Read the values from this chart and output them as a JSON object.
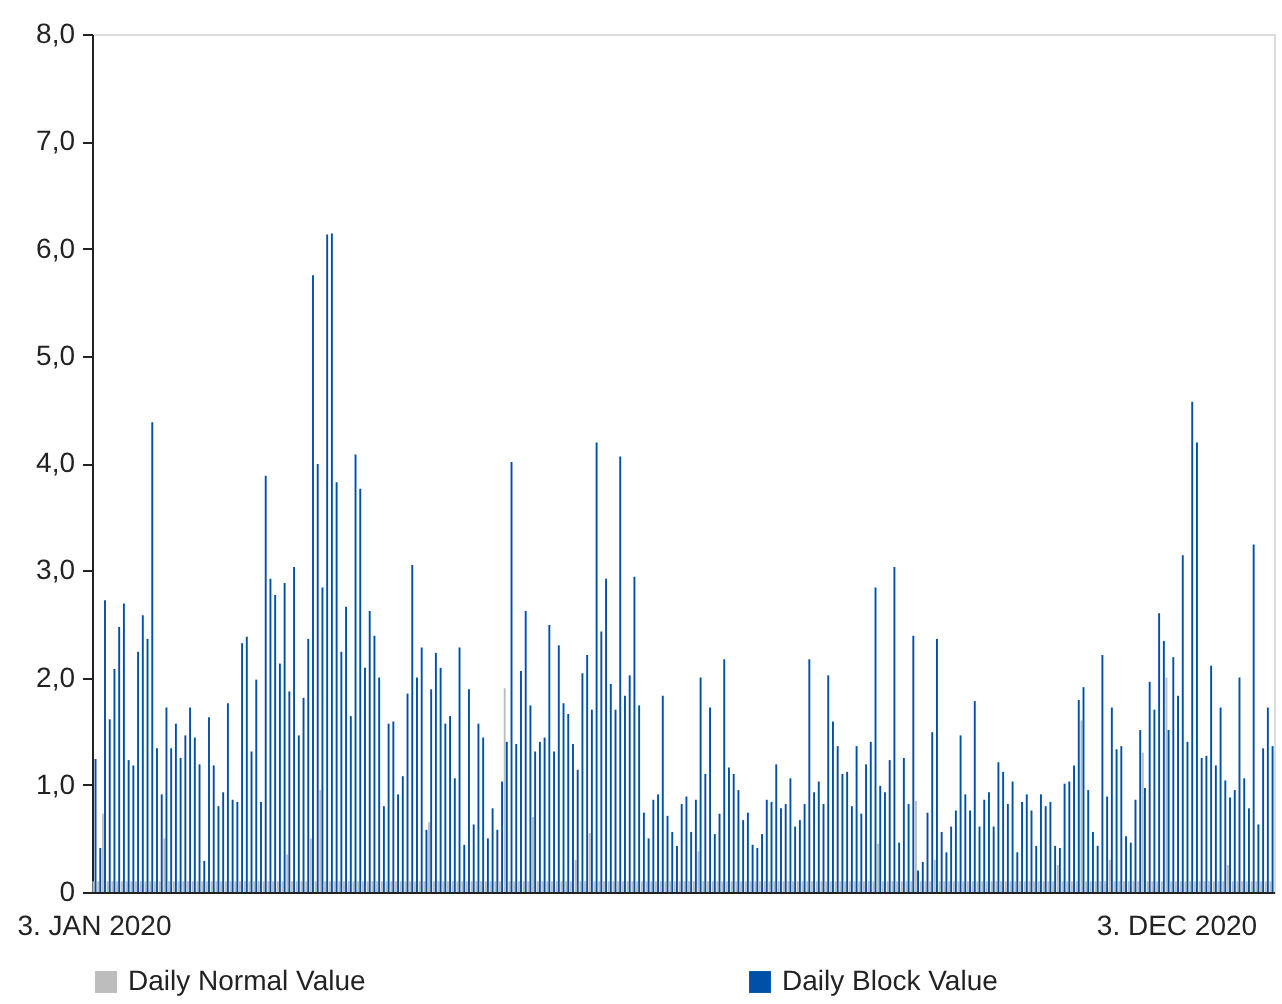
{
  "chart_data": {
    "type": "bar",
    "categories": [
      "3. JAN 2020",
      null,
      null,
      null,
      null,
      null,
      null,
      null,
      null,
      null,
      null,
      null,
      null,
      null,
      null,
      null,
      null,
      null,
      null,
      null,
      null,
      null,
      null,
      null,
      null,
      null,
      null,
      null,
      null,
      null,
      null,
      null,
      null,
      null,
      null,
      null,
      null,
      null,
      null,
      null,
      null,
      null,
      null,
      null,
      null,
      null,
      null,
      null,
      null,
      null,
      null,
      null,
      null,
      null,
      null,
      null,
      null,
      null,
      null,
      null,
      null,
      null,
      null,
      null,
      null,
      null,
      null,
      null,
      null,
      null,
      null,
      null,
      null,
      null,
      null,
      null,
      null,
      null,
      null,
      null,
      null,
      null,
      null,
      null,
      null,
      null,
      null,
      null,
      null,
      null,
      null,
      null,
      null,
      null,
      null,
      null,
      null,
      null,
      null,
      null,
      null,
      null,
      null,
      null,
      null,
      null,
      null,
      null,
      null,
      null,
      null,
      null,
      null,
      null,
      null,
      null,
      null,
      null,
      null,
      null,
      null,
      null,
      null,
      null,
      null,
      null,
      null,
      null,
      null,
      null,
      null,
      null,
      null,
      null,
      null,
      null,
      null,
      null,
      null,
      null,
      null,
      null,
      null,
      null,
      null,
      null,
      null,
      null,
      null,
      null,
      null,
      null,
      null,
      null,
      null,
      null,
      null,
      null,
      null,
      null,
      null,
      null,
      null,
      null,
      null,
      null,
      null,
      null,
      null,
      null,
      null,
      null,
      null,
      null,
      null,
      null,
      null,
      null,
      null,
      null,
      null,
      null,
      null,
      null,
      null,
      null,
      null,
      null,
      null,
      null,
      null,
      null,
      null,
      null,
      null,
      null,
      null,
      null,
      null,
      null,
      null,
      null,
      null,
      null,
      null,
      null,
      null,
      null,
      null,
      null,
      null,
      null,
      null,
      null,
      null,
      null,
      null,
      null,
      null,
      null,
      null,
      null,
      null,
      null,
      null,
      null,
      null,
      null,
      null,
      "3. DEC 2020",
      null,
      null,
      null,
      null,
      null,
      null,
      null,
      null,
      null,
      null,
      null,
      null,
      null,
      null,
      null,
      null,
      null,
      null,
      null,
      null
    ],
    "series": [
      {
        "name": "Daily Normal Value",
        "color": "#bdbdbd",
        "values": [
          0.1,
          0.1,
          0.73,
          0.1,
          0.1,
          0.1,
          0.1,
          0.1,
          0.1,
          0.1,
          0.1,
          0.1,
          0.1,
          0.1,
          0.1,
          0.5,
          0.1,
          0.1,
          0.1,
          0.1,
          0.1,
          0.1,
          0.1,
          0.1,
          0.1,
          0.1,
          0.1,
          0.1,
          0.1,
          0.1,
          0.1,
          0.1,
          0.1,
          0.1,
          0.1,
          0.1,
          0.1,
          0.1,
          0.1,
          0.1,
          0.1,
          0.35,
          0.1,
          0.1,
          0.1,
          0.1,
          0.5,
          0.1,
          0.95,
          0.1,
          0.1,
          0.1,
          0.1,
          0.1,
          0.1,
          0.1,
          0.1,
          0.1,
          0.1,
          0.1,
          0.1,
          0.1,
          0.1,
          0.1,
          0.1,
          0.1,
          0.1,
          0.1,
          0.1,
          0.1,
          0.1,
          0.65,
          0.1,
          0.1,
          0.1,
          0.1,
          0.1,
          0.1,
          0.1,
          0.1,
          0.1,
          0.1,
          0.1,
          0.1,
          0.1,
          0.1,
          0.1,
          1.9,
          0.1,
          0.1,
          0.1,
          0.1,
          0.1,
          0.7,
          0.1,
          0.1,
          0.1,
          0.1,
          0.1,
          0.1,
          0.1,
          0.1,
          0.3,
          0.1,
          0.1,
          0.55,
          0.1,
          0.1,
          0.1,
          0.1,
          0.1,
          0.1,
          0.1,
          0.1,
          0.1,
          0.1,
          0.1,
          0.1,
          0.1,
          0.1,
          0.1,
          0.1,
          0.1,
          0.1,
          0.1,
          0.1,
          0.1,
          0.1,
          0.38,
          0.1,
          0.1,
          0.1,
          0.1,
          0.1,
          0.1,
          0.1,
          0.1,
          0.1,
          0.1,
          0.1,
          0.1,
          0.1,
          0.1,
          0.1,
          0.1,
          0.1,
          0.1,
          0.1,
          0.1,
          0.1,
          0.1,
          0.1,
          0.1,
          0.1,
          0.1,
          0.1,
          0.1,
          0.1,
          0.1,
          0.1,
          0.1,
          0.1,
          0.1,
          0.1,
          0.1,
          0.1,
          0.45,
          0.1,
          0.1,
          0.1,
          0.1,
          0.1,
          0.1,
          0.1,
          0.85,
          0.1,
          0.1,
          0.1,
          0.3,
          0.1,
          0.1,
          0.1,
          0.1,
          0.1,
          0.1,
          0.1,
          0.1,
          0.1,
          0.1,
          0.1,
          0.1,
          0.1,
          0.1,
          0.1,
          0.1,
          0.1,
          0.1,
          0.1,
          0.1,
          0.1,
          0.1,
          0.1,
          0.1,
          0.1,
          0.25,
          0.1,
          0.1,
          0.1,
          0.1,
          1.6,
          0.1,
          0.1,
          0.1,
          0.1,
          0.1,
          0.3,
          0.1,
          0.1,
          0.1,
          0.1,
          0.1,
          0.1,
          1.3,
          0.1,
          0.1,
          0.1,
          0.1,
          2.0,
          0.1,
          0.1,
          0.1,
          0.1,
          0.1,
          0.1,
          0.1,
          0.1,
          0.1,
          0.1,
          0.1,
          0.1,
          0.25,
          0.1,
          0.1,
          0.1,
          0.1,
          0.1,
          0.1,
          0.1,
          0.1,
          0.1
        ]
      },
      {
        "name": "Daily Block Value",
        "color": "#0050a8",
        "values": [
          1.24,
          0.41,
          2.72,
          1.61,
          2.08,
          2.47,
          2.69,
          1.23,
          1.18,
          2.24,
          2.58,
          2.36,
          4.38,
          1.34,
          0.91,
          1.72,
          1.34,
          1.57,
          1.25,
          1.46,
          1.72,
          1.44,
          1.19,
          0.29,
          1.63,
          1.18,
          0.8,
          0.93,
          1.76,
          0.86,
          0.84,
          2.32,
          2.38,
          1.31,
          1.98,
          0.84,
          3.88,
          2.92,
          2.77,
          2.13,
          2.88,
          1.87,
          3.03,
          1.46,
          1.81,
          2.36,
          5.75,
          3.99,
          2.84,
          6.13,
          6.14,
          3.82,
          2.24,
          2.66,
          1.64,
          4.08,
          3.76,
          2.09,
          2.62,
          2.39,
          2.0,
          0.8,
          1.57,
          1.59,
          0.91,
          1.08,
          1.85,
          3.05,
          2.0,
          2.28,
          0.58,
          1.89,
          2.23,
          2.09,
          1.57,
          1.64,
          1.06,
          2.28,
          0.44,
          1.89,
          0.63,
          1.57,
          1.44,
          0.5,
          0.78,
          0.58,
          1.03,
          1.4,
          4.01,
          1.38,
          2.06,
          2.62,
          1.74,
          1.31,
          1.4,
          1.44,
          2.49,
          1.31,
          2.3,
          1.76,
          1.66,
          1.38,
          1.14,
          2.04,
          2.21,
          1.7,
          4.19,
          2.43,
          2.92,
          1.94,
          1.7,
          4.06,
          1.83,
          2.02,
          2.94,
          1.74,
          0.74,
          0.5,
          0.86,
          0.91,
          1.83,
          0.71,
          0.56,
          0.43,
          0.82,
          0.89,
          0.56,
          0.86,
          2.0,
          1.1,
          1.72,
          0.54,
          0.73,
          2.17,
          1.16,
          1.1,
          0.95,
          0.67,
          0.74,
          0.44,
          0.41,
          0.54,
          0.86,
          0.84,
          1.19,
          0.78,
          0.82,
          1.06,
          0.61,
          0.67,
          0.82,
          2.17,
          0.93,
          1.03,
          0.82,
          2.02,
          1.59,
          1.36,
          1.1,
          1.12,
          0.8,
          1.36,
          0.73,
          1.19,
          1.4,
          2.84,
          0.99,
          0.93,
          1.23,
          3.03,
          0.46,
          1.25,
          0.82,
          2.39,
          0.2,
          0.28,
          0.74,
          1.49,
          2.36,
          0.56,
          0.37,
          0.61,
          0.76,
          1.46,
          0.91,
          0.76,
          1.78,
          0.61,
          0.86,
          0.93,
          0.61,
          1.21,
          1.12,
          0.82,
          1.03,
          0.37,
          0.84,
          0.91,
          0.76,
          0.43,
          0.91,
          0.8,
          0.84,
          0.43,
          0.41,
          1.01,
          1.03,
          1.18,
          1.79,
          1.91,
          0.95,
          0.56,
          0.43,
          2.21,
          0.89,
          1.72,
          1.33,
          1.36,
          0.52,
          0.46,
          0.86,
          1.51,
          0.97,
          1.96,
          1.7,
          2.6,
          2.34,
          1.51,
          2.19,
          1.83,
          3.14,
          1.4,
          4.57,
          4.19,
          1.25,
          1.27,
          2.11,
          1.18,
          1.72,
          1.04,
          0.88,
          0.95,
          2.0,
          1.06,
          0.78,
          3.24,
          0.63,
          1.34,
          1.72,
          1.36
        ]
      }
    ],
    "ylim": [
      0,
      8
    ],
    "yticks": [
      {
        "value": 0,
        "label": "0"
      },
      {
        "value": 1,
        "label": "1,0"
      },
      {
        "value": 2,
        "label": "2,0"
      },
      {
        "value": 3,
        "label": "3,0"
      },
      {
        "value": 4,
        "label": "4,0"
      },
      {
        "value": 5,
        "label": "5,0"
      },
      {
        "value": 6,
        "label": "6,0"
      },
      {
        "value": 7,
        "label": "7,0"
      },
      {
        "value": 8,
        "label": "8,0"
      }
    ],
    "grid": false,
    "legend": "bottom"
  }
}
